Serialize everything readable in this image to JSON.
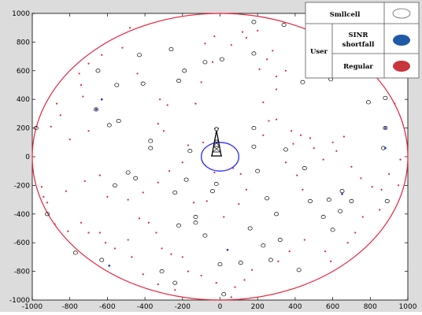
{
  "chart_data": {
    "type": "scatter",
    "xlim": [
      -1000,
      1000
    ],
    "ylim": [
      -1000,
      1000
    ],
    "xticks": [
      -1000,
      -800,
      -600,
      -400,
      -200,
      0,
      200,
      400,
      600,
      800,
      1000
    ],
    "yticks": [
      -1000,
      -800,
      -600,
      -400,
      -200,
      0,
      200,
      400,
      600,
      800,
      1000
    ],
    "grid": false,
    "legend_position": "top-right",
    "legend": {
      "smallcell_label": "Smllcell",
      "user_label": "User",
      "sinr_label_line1": "SINR",
      "sinr_label_line2": "shortfall",
      "regular_label": "Regular"
    },
    "colors": {
      "macro_boundary": "#e8203a",
      "smallcell": "#000000",
      "sinr_user": "#1a2fbf",
      "regular_user": "#e8203a",
      "tower_circle": "#2b2bff",
      "legend_sinr_fill": "#1f5aa8",
      "legend_regular_fill": "#c9353d"
    },
    "macro_cell": {
      "center": [
        0,
        0
      ],
      "radius": 1000
    },
    "base_station": {
      "icon": "cell-tower-icon",
      "coverage_radius": 100
    },
    "smallcells": [
      [
        -650,
        600
      ],
      [
        -550,
        500
      ],
      [
        -430,
        710
      ],
      [
        -260,
        750
      ],
      [
        -190,
        600
      ],
      [
        -80,
        660
      ],
      [
        10,
        680
      ],
      [
        180,
        720
      ],
      [
        180,
        940
      ],
      [
        340,
        920
      ],
      [
        500,
        860
      ],
      [
        440,
        520
      ],
      [
        590,
        540
      ],
      [
        670,
        590
      ],
      [
        790,
        380
      ],
      [
        880,
        410
      ],
      [
        -980,
        200
      ],
      [
        -590,
        220
      ],
      [
        -540,
        250
      ],
      [
        -660,
        330
      ],
      [
        -220,
        530
      ],
      [
        -410,
        510
      ],
      [
        -370,
        110
      ],
      [
        -370,
        60
      ],
      [
        -490,
        -110
      ],
      [
        -560,
        -200
      ],
      [
        -450,
        -150
      ],
      [
        -240,
        -250
      ],
      [
        -180,
        -160
      ],
      [
        -160,
        40
      ],
      [
        -20,
        -190
      ],
      [
        -40,
        -240
      ],
      [
        -220,
        -480
      ],
      [
        -130,
        -420
      ],
      [
        -80,
        -550
      ],
      [
        0,
        -750
      ],
      [
        20,
        -960
      ],
      [
        110,
        -740
      ],
      [
        230,
        -620
      ],
      [
        270,
        -720
      ],
      [
        160,
        -500
      ],
      [
        300,
        -400
      ],
      [
        200,
        -100
      ],
      [
        250,
        -290
      ],
      [
        350,
        50
      ],
      [
        180,
        70
      ],
      [
        180,
        200
      ],
      [
        450,
        -80
      ],
      [
        480,
        -310
      ],
      [
        580,
        -300
      ],
      [
        650,
        -240
      ],
      [
        640,
        -380
      ],
      [
        700,
        -310
      ],
      [
        550,
        -420
      ],
      [
        600,
        -510
      ],
      [
        420,
        -790
      ],
      [
        890,
        -310
      ],
      [
        870,
        60
      ],
      [
        880,
        200
      ],
      [
        -310,
        -800
      ],
      [
        -240,
        -880
      ],
      [
        -630,
        -720
      ],
      [
        -920,
        -400
      ],
      [
        -770,
        -670
      ],
      [
        -130,
        -460
      ],
      [
        320,
        -580
      ]
    ],
    "sinr_users": [
      [
        -630,
        400
      ],
      [
        -660,
        330
      ],
      [
        880,
        200
      ],
      [
        880,
        60
      ],
      [
        40,
        -650
      ],
      [
        -590,
        -760
      ],
      [
        650,
        -260
      ]
    ],
    "regular_users": [
      [
        -870,
        370
      ],
      [
        -850,
        290
      ],
      [
        -800,
        120
      ],
      [
        -700,
        180
      ],
      [
        -730,
        420
      ],
      [
        -740,
        500
      ],
      [
        -750,
        580
      ],
      [
        -700,
        650
      ],
      [
        -630,
        710
      ],
      [
        -520,
        760
      ],
      [
        -480,
        900
      ],
      [
        -440,
        580
      ],
      [
        -320,
        400
      ],
      [
        -330,
        230
      ],
      [
        -300,
        180
      ],
      [
        -280,
        360
      ],
      [
        -130,
        370
      ],
      [
        -100,
        520
      ],
      [
        -80,
        790
      ],
      [
        -30,
        840
      ],
      [
        -40,
        660
      ],
      [
        60,
        780
      ],
      [
        140,
        830
      ],
      [
        120,
        870
      ],
      [
        200,
        880
      ],
      [
        280,
        740
      ],
      [
        250,
        680
      ],
      [
        210,
        610
      ],
      [
        300,
        560
      ],
      [
        300,
        470
      ],
      [
        350,
        600
      ],
      [
        230,
        380
      ],
      [
        260,
        250
      ],
      [
        230,
        150
      ],
      [
        300,
        260
      ],
      [
        380,
        180
      ],
      [
        430,
        150
      ],
      [
        390,
        90
      ],
      [
        350,
        -40
      ],
      [
        410,
        -130
      ],
      [
        440,
        -230
      ],
      [
        480,
        130
      ],
      [
        500,
        60
      ],
      [
        550,
        -20
      ],
      [
        600,
        100
      ],
      [
        620,
        40
      ],
      [
        660,
        140
      ],
      [
        700,
        -70
      ],
      [
        750,
        -150
      ],
      [
        810,
        -210
      ],
      [
        860,
        -230
      ],
      [
        950,
        -200
      ],
      [
        900,
        -120
      ],
      [
        850,
        -370
      ],
      [
        760,
        -420
      ],
      [
        720,
        -530
      ],
      [
        680,
        -600
      ],
      [
        590,
        -730
      ],
      [
        560,
        -660
      ],
      [
        450,
        -580
      ],
      [
        370,
        -660
      ],
      [
        310,
        -730
      ],
      [
        170,
        -790
      ],
      [
        130,
        -860
      ],
      [
        80,
        -910
      ],
      [
        60,
        -980
      ],
      [
        -20,
        -880
      ],
      [
        -100,
        -830
      ],
      [
        -170,
        -800
      ],
      [
        -200,
        -700
      ],
      [
        -260,
        -680
      ],
      [
        -310,
        -640
      ],
      [
        -340,
        -530
      ],
      [
        -380,
        -460
      ],
      [
        -430,
        -430
      ],
      [
        -490,
        -580
      ],
      [
        -560,
        -640
      ],
      [
        -610,
        -600
      ],
      [
        -640,
        -530
      ],
      [
        -700,
        -530
      ],
      [
        -740,
        -460
      ],
      [
        -810,
        -520
      ],
      [
        -880,
        -470
      ],
      [
        -920,
        -320
      ],
      [
        -950,
        -210
      ],
      [
        -820,
        -240
      ],
      [
        -720,
        -170
      ],
      [
        -640,
        -130
      ],
      [
        -600,
        -280
      ],
      [
        -490,
        -300
      ],
      [
        -410,
        -250
      ],
      [
        -330,
        -180
      ],
      [
        -270,
        -100
      ],
      [
        -200,
        -40
      ],
      [
        -170,
        80
      ],
      [
        -140,
        -320
      ],
      [
        -70,
        -310
      ],
      [
        20,
        -420
      ],
      [
        100,
        -330
      ],
      [
        140,
        -230
      ],
      [
        110,
        -120
      ],
      [
        70,
        -80
      ],
      [
        -90,
        100
      ],
      [
        -30,
        -110
      ],
      [
        -470,
        -700
      ],
      [
        -410,
        -820
      ],
      [
        -330,
        -890
      ],
      [
        -240,
        -930
      ],
      [
        -900,
        210
      ],
      [
        -940,
        -280
      ],
      [
        930,
        370
      ],
      [
        960,
        -20
      ]
    ]
  }
}
